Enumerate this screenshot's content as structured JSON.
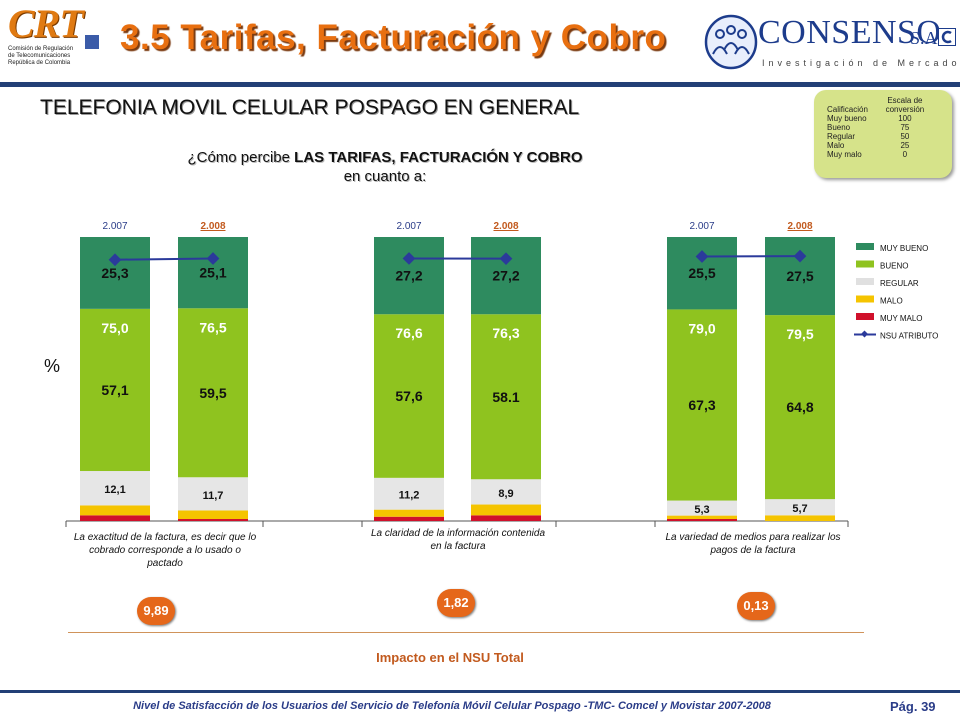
{
  "header": {
    "title": "3.5 Tarifas, Facturación y Cobro",
    "crt_logo_text": "CRT",
    "crt_subtitle_lines": [
      "Comisión de Regulación",
      "de Telecomunicaciones",
      "República de Colombia"
    ],
    "consenso_name": "CONSENSO",
    "consenso_sa": "S.A.",
    "consenso_tagline": "Investigación de Mercados"
  },
  "subtitle": "TELEFONIA MOVIL CELULAR POSPAGO EN GENERAL",
  "question": {
    "prefix": "¿Cómo percibe ",
    "bold": "LAS TARIFAS, FACTURACIÓN Y COBRO",
    "line2": "en cuanto a:"
  },
  "scale": {
    "header_left": "Calificación",
    "header_right": "Escala de conversión",
    "rows": [
      {
        "label": "Muy bueno",
        "value": "100"
      },
      {
        "label": "Bueno",
        "value": "75"
      },
      {
        "label": "Regular",
        "value": "50"
      },
      {
        "label": "Malo",
        "value": "25"
      },
      {
        "label": "Muy malo",
        "value": "0"
      }
    ]
  },
  "percent_label": "%",
  "categories": [
    "La exactitud de la factura, es decir que lo cobrado corresponde a lo usado o pactado",
    "La claridad de la información contenida en la factura",
    "La variedad de medios para realizar los pagos de la factura"
  ],
  "impacts": [
    "9,89",
    "1,82",
    "0,13"
  ],
  "impact_label": "Impacto en el NSU Total",
  "footer": "Nivel de Satisfacción de los Usuarios del Servicio de Telefonía Móvil Celular Pospago -TMC- Comcel y Movistar 2007-2008",
  "page_number": "Pág. 39",
  "colors": {
    "muy_bueno": "#2e8b5f",
    "bueno": "#8fc31f",
    "regular": "#e6e6e6",
    "malo": "#f5c400",
    "muy_malo": "#d0112b",
    "nsu": "#2b3a9b",
    "accent": "#e86f10"
  },
  "chart_data": {
    "type": "bar",
    "stacked": true,
    "ylabel": "%",
    "ylim": [
      0,
      100
    ],
    "legend": [
      "MUY BUENO",
      "BUENO",
      "REGULAR",
      "MALO",
      "MUY MALO",
      "NSU ATRIBUTO"
    ],
    "legend_position": "right",
    "groups": [
      {
        "bars": [
          {
            "year": "2.007",
            "muy_bueno": 25.3,
            "bueno": 57.1,
            "regular": 12.1,
            "malo": 3.5,
            "muy_malo": 2.0,
            "nsu": 75.0,
            "labels": {
              "muy_bueno": "25,3",
              "bueno": "57,1",
              "regular": "12,1",
              "nsu": "75,0"
            }
          },
          {
            "year": "2.008",
            "muy_bueno": 25.1,
            "bueno": 59.5,
            "regular": 11.7,
            "malo": 3.0,
            "muy_malo": 0.7,
            "nsu": 76.5,
            "labels": {
              "muy_bueno": "25,1",
              "bueno": "59,5",
              "regular": "11,7",
              "nsu": "76,5"
            }
          }
        ]
      },
      {
        "bars": [
          {
            "year": "2.007",
            "muy_bueno": 27.2,
            "bueno": 57.6,
            "regular": 11.2,
            "malo": 2.5,
            "muy_malo": 1.5,
            "nsu": 76.6,
            "labels": {
              "muy_bueno": "27,2",
              "bueno": "57,6",
              "regular": "11,2",
              "nsu": "76,6"
            }
          },
          {
            "year": "2.008",
            "muy_bueno": 27.2,
            "bueno": 58.1,
            "regular": 8.9,
            "malo": 3.8,
            "muy_malo": 2.0,
            "nsu": 76.3,
            "labels": {
              "muy_bueno": "27,2",
              "bueno": "58.1",
              "regular": "8,9",
              "nsu": "76,3"
            }
          }
        ]
      },
      {
        "bars": [
          {
            "year": "2.007",
            "muy_bueno": 25.5,
            "bueno": 67.3,
            "regular": 5.3,
            "malo": 1.2,
            "muy_malo": 0.7,
            "nsu": 79.0,
            "labels": {
              "muy_bueno": "25,5",
              "bueno": "67,3",
              "regular": "5,3",
              "nsu": "79,0"
            }
          },
          {
            "year": "2.008",
            "muy_bueno": 27.5,
            "bueno": 64.8,
            "regular": 5.7,
            "malo": 2.0,
            "muy_malo": 0.0,
            "nsu": 79.5,
            "labels": {
              "muy_bueno": "27,5",
              "bueno": "64,8",
              "regular": "5,7",
              "nsu": "79,5"
            }
          }
        ]
      }
    ]
  }
}
